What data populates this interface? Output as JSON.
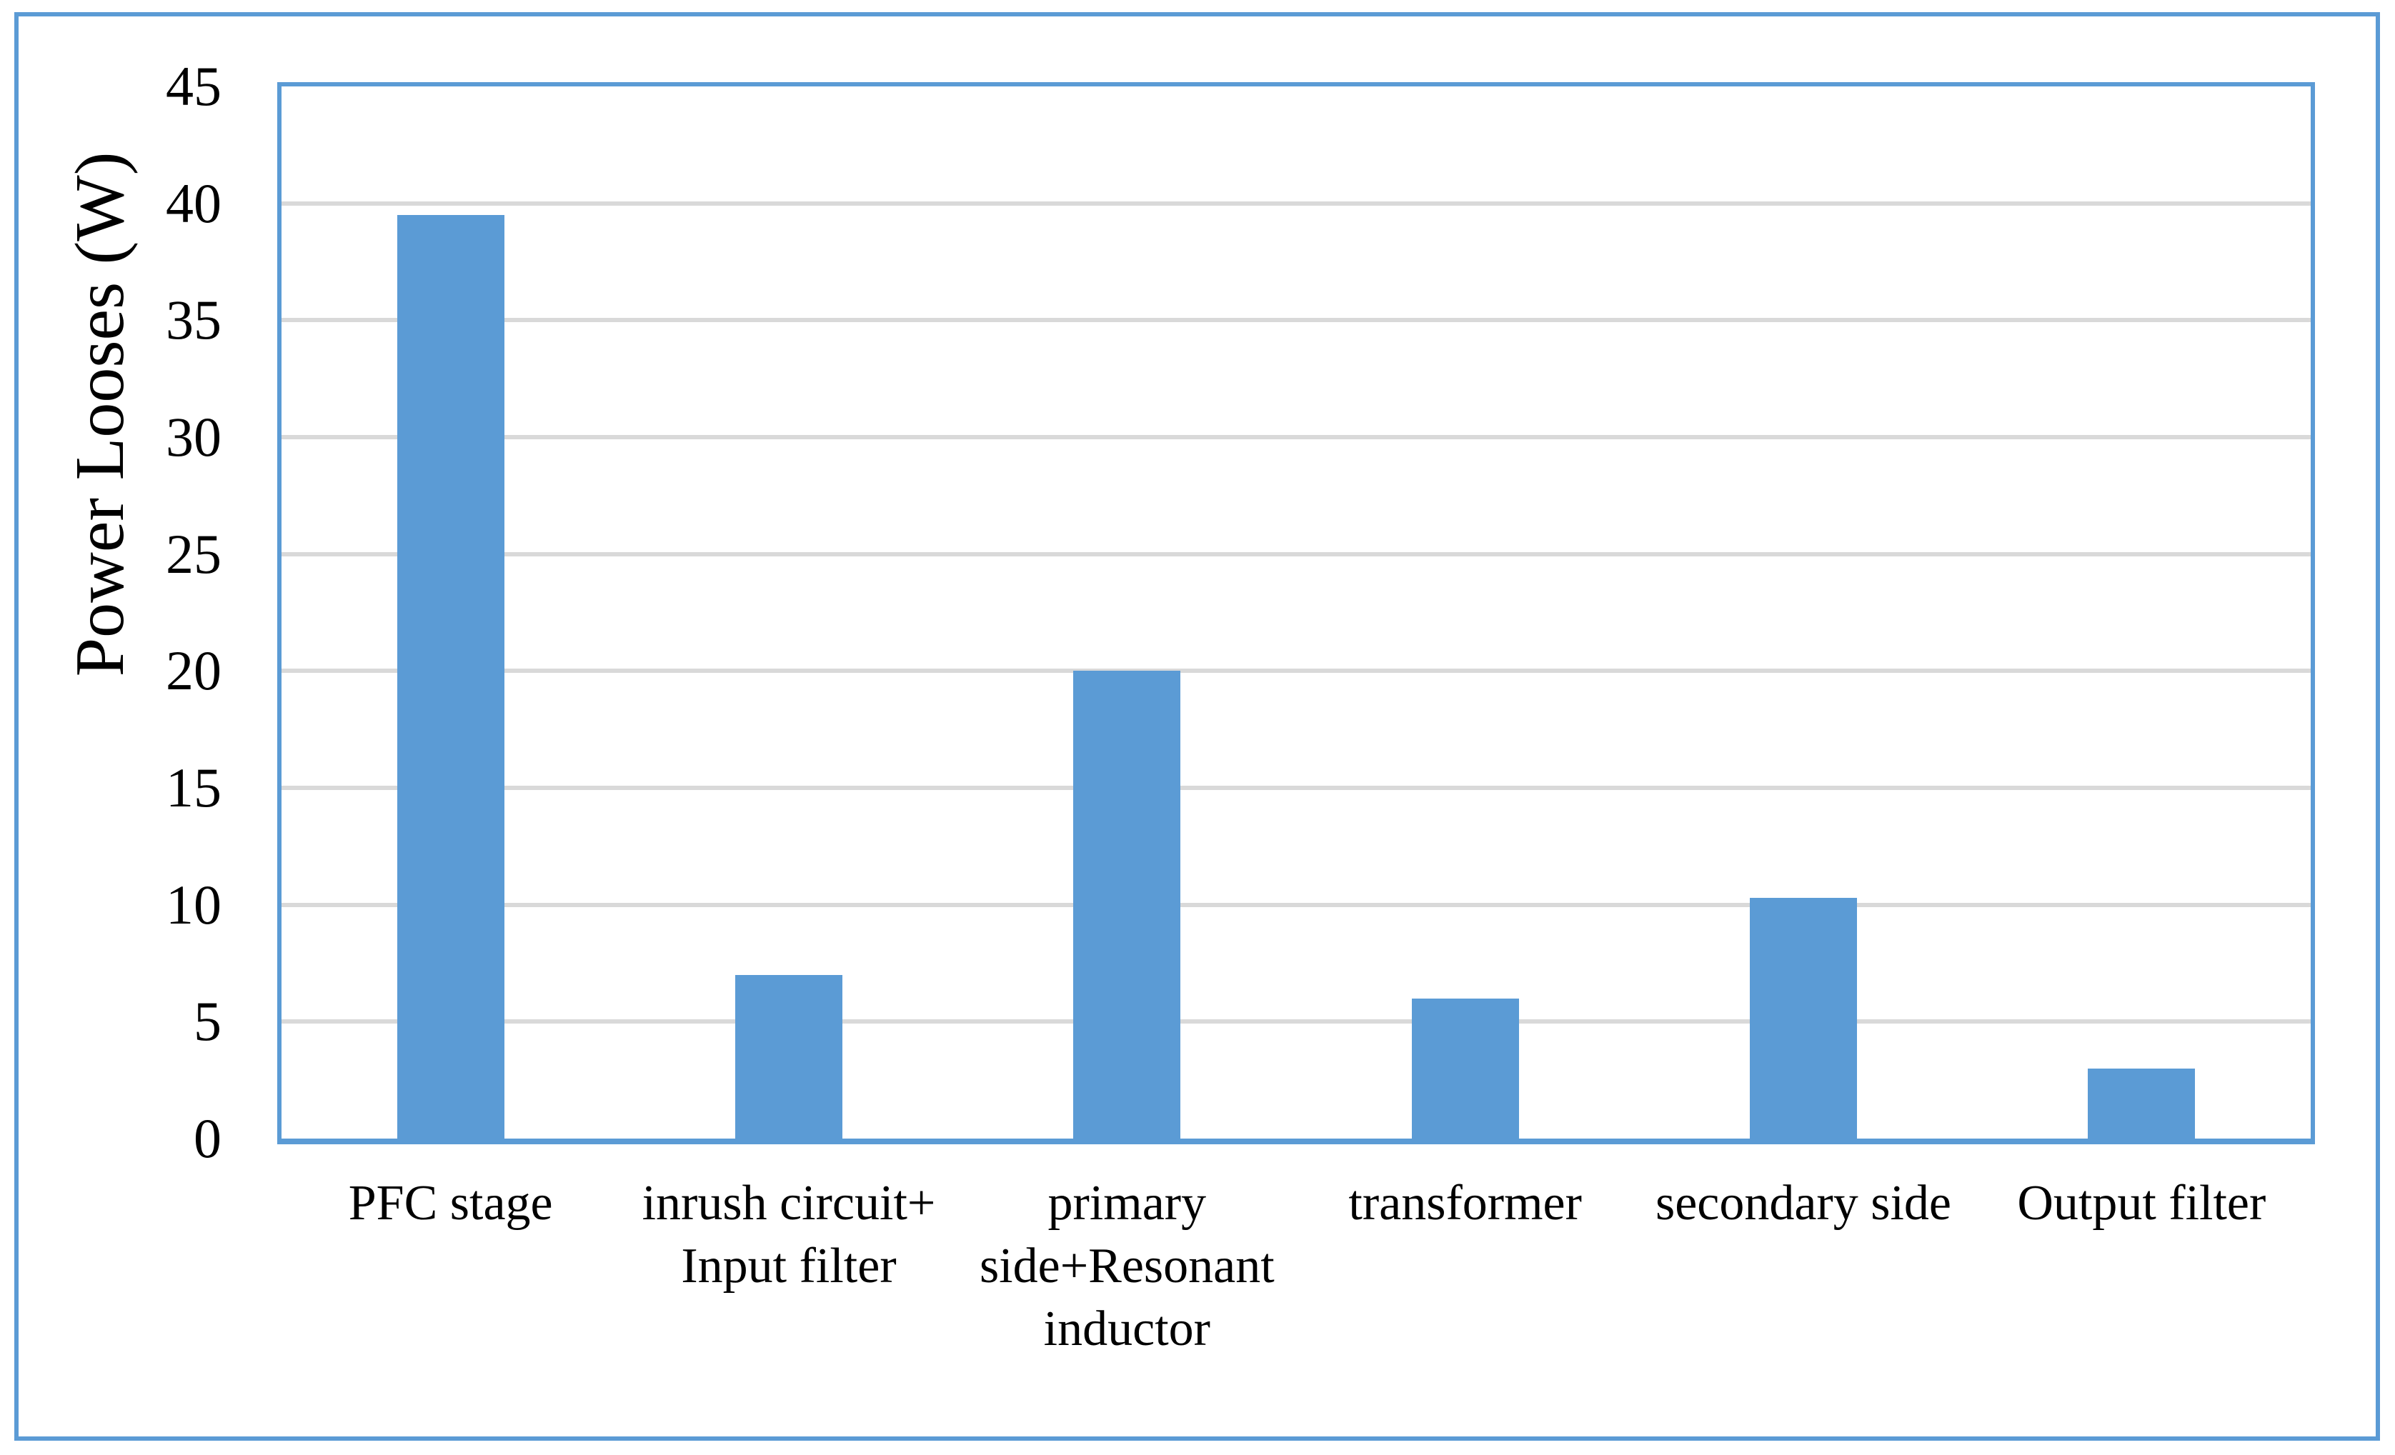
{
  "chart_data": {
    "type": "bar",
    "categories": [
      "PFC stage",
      "inrush circuit+ Input filter",
      "primary side+Resonant inductor",
      "transformer",
      "secondary side",
      "Output filter"
    ],
    "category_lines": [
      [
        "PFC stage"
      ],
      [
        "inrush circuit+",
        "Input filter"
      ],
      [
        "primary",
        "side+Resonant",
        "inductor"
      ],
      [
        "transformer"
      ],
      [
        "secondary side"
      ],
      [
        "Output filter"
      ]
    ],
    "values": [
      39.5,
      7,
      20,
      6,
      10.3,
      3
    ],
    "title": "",
    "xlabel": "",
    "ylabel": "Power Looses (W)",
    "ylim": [
      0,
      45
    ],
    "ytick_step": 5,
    "yticks": [
      0,
      5,
      10,
      15,
      20,
      25,
      30,
      35,
      40,
      45
    ],
    "grid": "horizontal",
    "legend": "none",
    "colors": {
      "bar": "#5B9BD5",
      "axis": "#5B9BD5",
      "frame": "#5B9BD5",
      "gridline": "#D9D9D9",
      "text": "#000000",
      "background": "#FFFFFF"
    }
  }
}
